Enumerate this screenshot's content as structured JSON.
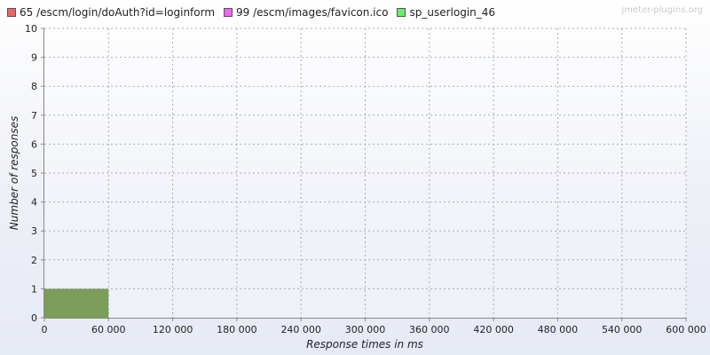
{
  "watermark": "jmeter-plugins.org",
  "chart_data": {
    "type": "bar",
    "xlabel": "Response times in ms",
    "ylabel": "Number of responses",
    "xlim": [
      0,
      600000
    ],
    "ylim": [
      0,
      10
    ],
    "x_ticks": [
      0,
      60000,
      120000,
      180000,
      240000,
      300000,
      360000,
      420000,
      480000,
      540000,
      600000
    ],
    "x_tick_labels": [
      "0",
      "60 000",
      "120 000",
      "180 000",
      "240 000",
      "300 000",
      "360 000",
      "420 000",
      "480 000",
      "540 000",
      "600 000"
    ],
    "y_ticks": [
      0,
      1,
      2,
      3,
      4,
      5,
      6,
      7,
      8,
      9,
      10
    ],
    "y_tick_labels": [
      "0",
      "1",
      "2",
      "3",
      "4",
      "5",
      "6",
      "7",
      "8",
      "9",
      "10"
    ],
    "grid": true,
    "legend_position": "top-left",
    "bin_width": 60000,
    "series": [
      {
        "name": "65 /escm/login/doAuth?id=loginform",
        "color": "#f06464",
        "bins": []
      },
      {
        "name": "99 /escm/images/favicon.ico",
        "color": "#f266f2",
        "bins": []
      },
      {
        "name": "sp_userlogin_46",
        "color": "#66ee66",
        "bins": [
          {
            "x_start": 0,
            "x_end": 60000,
            "count": 1
          }
        ]
      }
    ],
    "bar_display_color": "#7b9e5a"
  }
}
